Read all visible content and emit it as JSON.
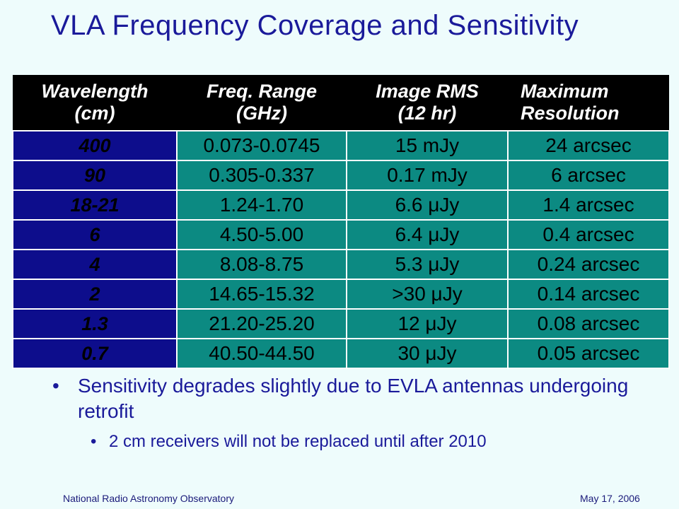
{
  "slide": {
    "title": "VLA Frequency Coverage and Sensitivity"
  },
  "table": {
    "headers": [
      [
        "Wavelength",
        "(cm)"
      ],
      [
        "Freq. Range",
        "(GHz)"
      ],
      [
        "Image RMS",
        "(12 hr)"
      ],
      [
        "Maximum",
        "Resolution"
      ]
    ],
    "rows": [
      [
        "400",
        "0.073-0.0745",
        "15 mJy",
        "24 arcsec"
      ],
      [
        "90",
        "0.305-0.337",
        "0.17 mJy",
        "6 arcsec"
      ],
      [
        "18-21",
        "1.24-1.70",
        "6.6 μJy",
        "1.4 arcsec"
      ],
      [
        "6",
        "4.50-5.00",
        "6.4 μJy",
        "0.4 arcsec"
      ],
      [
        "4",
        "8.08-8.75",
        "5.3 μJy",
        "0.24 arcsec"
      ],
      [
        "2",
        "14.65-15.32",
        ">30 μJy",
        "0.14 arcsec"
      ],
      [
        "1.3",
        "21.20-25.20",
        "12 μJy",
        "0.08 arcsec"
      ],
      [
        "0.7",
        "40.50-44.50",
        "30 μJy",
        "0.05 arcsec"
      ]
    ]
  },
  "bullets": {
    "main": "Sensitivity degrades slightly due to EVLA antennas undergoing retrofit",
    "sub": "2 cm receivers will not be replaced until after 2010",
    "glyph": "•"
  },
  "footer": {
    "left": "National Radio Astronomy Observatory",
    "right": "May 17, 2006"
  },
  "colors": {
    "title": "#1a1a9a",
    "header_bg": "#000000",
    "wavelength_bg": "#0d0d8c",
    "value_bg": "#0c8a82",
    "background": "#eefcfc"
  }
}
